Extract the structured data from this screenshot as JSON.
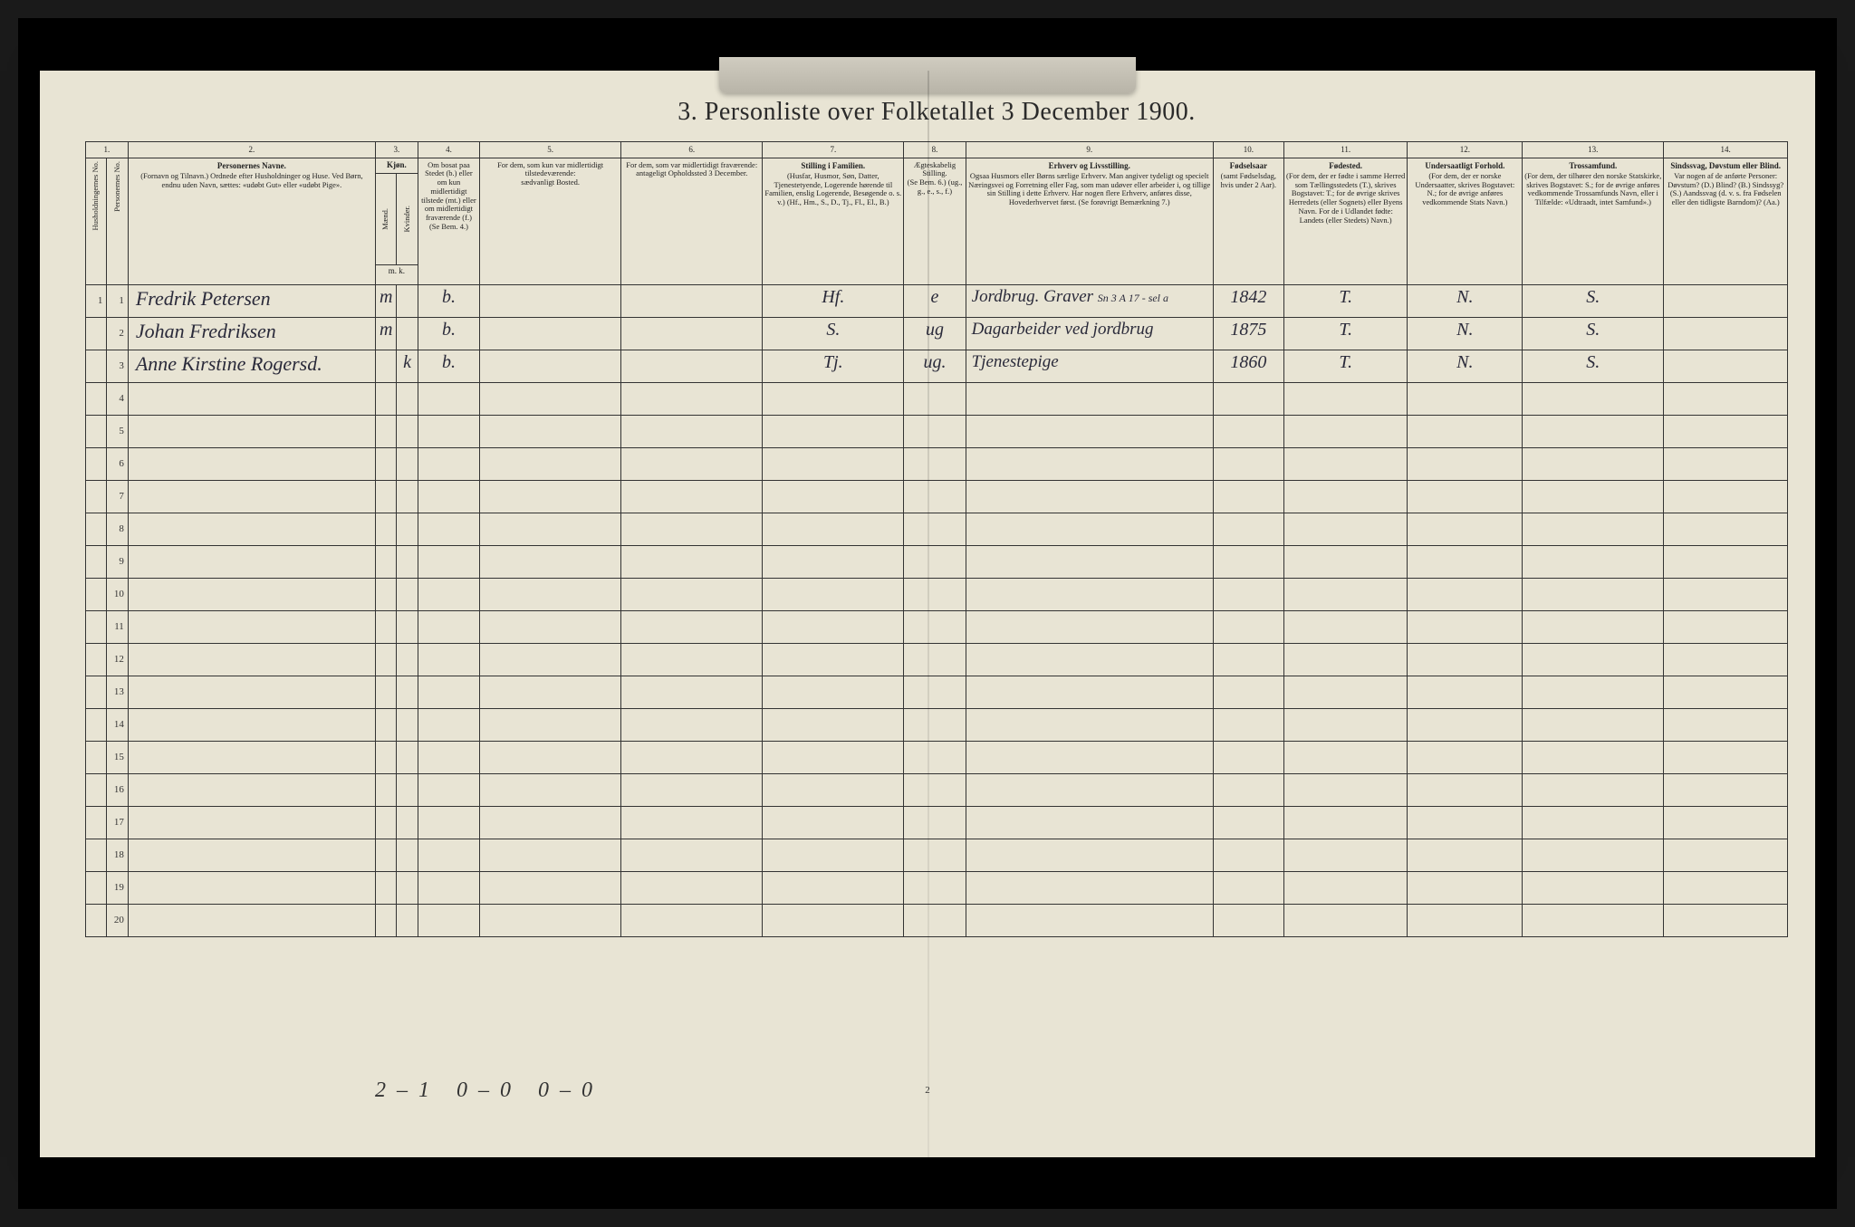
{
  "title": "3. Personliste over Folketallet 3 December 1900.",
  "page_number": "2",
  "footer_tally": "2–1   0–0   0–0",
  "columns": {
    "col1_num": "1.",
    "col1_label": "Husholdningernes No.",
    "col1b_label": "Personernes No.",
    "col2_num": "2.",
    "col2_label": "Personernes Navne.",
    "col2_sub": "(Fornavn og Tilnavn.) Ordnede efter Husholdninger og Huse. Ved Børn, endnu uden Navn, sættes: «udøbt Gut» eller «udøbt Pige».",
    "col3_num": "3.",
    "col3_label": "Kjøn.",
    "col3_m": "Mænd.",
    "col3_k": "Kvinder.",
    "col3_mk": "m. k.",
    "col4_num": "4.",
    "col4_label": "Om bosat paa Stedet (b.) eller om kun midlertidigt tilstede (mt.) eller om midlertidigt fraværende (f.)",
    "col4_sub": "(Se Bem. 4.)",
    "col5_num": "5.",
    "col5_label": "For dem, som kun var midlertidigt tilstedeværende:",
    "col5_sub": "sædvanligt Bosted.",
    "col6_num": "6.",
    "col6_label": "For dem, som var midlertidigt fraværende:",
    "col6_sub": "antageligt Opholdssted 3 December.",
    "col7_num": "7.",
    "col7_label": "Stilling i Familien.",
    "col7_sub": "(Husfar, Husmor, Søn, Datter, Tjenestetyende, Logerende hørende til Familien, enslig Logerende, Besøgende o. s. v.) (Hf., Hm., S., D., Tj., Fl., El., B.)",
    "col8_num": "8.",
    "col8_label": "Ægteskabelig Stilling.",
    "col8_sub": "(Se Bem. 6.) (ug., g., e., s., f.)",
    "col9_num": "9.",
    "col9_label": "Erhverv og Livsstilling.",
    "col9_sub": "Ogsaa Husmors eller Børns særlige Erhverv. Man angiver tydeligt og specielt Næringsvei og Forretning eller Fag, som man udøver eller arbeider i, og tillige sin Stilling i dette Erhverv. Har nogen flere Erhverv, anføres disse, Hovederhvervet først. (Se forøvrigt Bemærkning 7.)",
    "col10_num": "10.",
    "col10_label": "Fødselsaar",
    "col10_sub": "(samt Fødselsdag, hvis under 2 Aar).",
    "col11_num": "11.",
    "col11_label": "Fødested.",
    "col11_sub": "(For dem, der er fødte i samme Herred som Tællingsstedets (T.), skrives Bogstavet: T.; for de øvrige skrives Herredets (eller Sognets) eller Byens Navn. For de i Udlandet fødte: Landets (eller Stedets) Navn.)",
    "col12_num": "12.",
    "col12_label": "Undersaatligt Forhold.",
    "col12_sub": "(For dem, der er norske Undersaatter, skrives Bogstavet: N.; for de øvrige anføres vedkommende Stats Navn.)",
    "col13_num": "13.",
    "col13_label": "Trossamfund.",
    "col13_sub": "(For dem, der tilhører den norske Statskirke, skrives Bogstavet: S.; for de øvrige anføres vedkommende Trossamfunds Navn, eller i Tilfælde: «Udtraadt, intet Samfund».)",
    "col14_num": "14.",
    "col14_label": "Sindssvag, Døvstum eller Blind.",
    "col14_sub": "Var nogen af de anførte Personer: Døvstum? (D.) Blind? (B.) Sindssyg? (S.) Aandssvag (d. v. s. fra Fødselen eller den tidligste Barndom)? (Aa.)"
  },
  "rows": [
    {
      "hh": "1",
      "pn": "1",
      "name": "Fredrik Petersen",
      "sex": "m",
      "res": "b.",
      "c5": "",
      "c6": "",
      "fam": "Hf.",
      "mar": "e",
      "occ": "Jordbrug. Graver",
      "note": "Sn 3 A 17 - sel a",
      "year": "1842",
      "birthplace": "T.",
      "nat": "N.",
      "rel": "S.",
      "c14": ""
    },
    {
      "hh": "",
      "pn": "2",
      "name": "Johan Fredriksen",
      "sex": "m",
      "res": "b.",
      "c5": "",
      "c6": "",
      "fam": "S.",
      "mar": "ug",
      "occ": "Dagarbeider ved jordbrug",
      "note": "",
      "year": "1875",
      "birthplace": "T.",
      "nat": "N.",
      "rel": "S.",
      "c14": ""
    },
    {
      "hh": "",
      "pn": "3",
      "name": "Anne Kirstine Rogersd.",
      "sex": "k",
      "res": "b.",
      "c5": "",
      "c6": "",
      "fam": "Tj.",
      "mar": "ug.",
      "occ": "Tjenestepige",
      "note": "",
      "year": "1860",
      "birthplace": "T.",
      "nat": "N.",
      "rel": "S.",
      "c14": ""
    }
  ],
  "empty_rows": [
    4,
    5,
    6,
    7,
    8,
    9,
    10,
    11,
    12,
    13,
    14,
    15,
    16,
    17,
    18,
    19,
    20
  ],
  "widths": {
    "hh": "1.2%",
    "pn": "1.2%",
    "name": "14%",
    "sexm": "1.2%",
    "sexk": "1.2%",
    "res": "3.5%",
    "c5": "8%",
    "c6": "8%",
    "fam": "8%",
    "mar": "3.5%",
    "occ": "14%",
    "year": "4%",
    "birthplace": "7%",
    "nat": "6.5%",
    "rel": "8%",
    "c14": "7%"
  },
  "colors": {
    "page_bg": "#e8e4d4",
    "outer_bg": "#1a1a1a",
    "line": "#333333",
    "text": "#2a2a2a",
    "handwriting": "#2a2a3a"
  }
}
